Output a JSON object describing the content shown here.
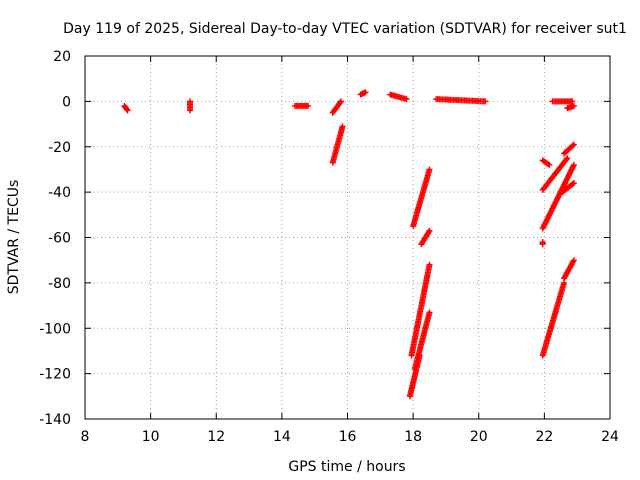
{
  "chart_data": {
    "type": "scatter",
    "title": "Day 119 of 2025, Sidereal Day-to-day VTEC variation (SDTVAR) for receiver sut1",
    "xlabel": "GPS time / hours",
    "ylabel": "SDTVAR / TECUs",
    "xlim": [
      8,
      24
    ],
    "ylim": [
      -140,
      20
    ],
    "xticks": [
      8,
      10,
      12,
      14,
      16,
      18,
      20,
      22,
      24
    ],
    "yticks": [
      20,
      0,
      -20,
      -40,
      -60,
      -80,
      -100,
      -120,
      -140
    ],
    "grid": true,
    "marker": "+",
    "marker_color": "#ff0000",
    "series": [
      {
        "name": "tracks",
        "segments": [
          {
            "x": [
              9.2,
              9.3
            ],
            "y": [
              -2,
              -4
            ]
          },
          {
            "x": [
              11.2,
              11.2
            ],
            "y": [
              0,
              -4
            ]
          },
          {
            "x": [
              14.4,
              14.8
            ],
            "y": [
              -2,
              -2
            ]
          },
          {
            "x": [
              15.55,
              15.8
            ],
            "y": [
              -5,
              0
            ]
          },
          {
            "x": [
              15.55,
              15.85
            ],
            "y": [
              -27,
              -11
            ]
          },
          {
            "x": [
              16.4,
              16.55
            ],
            "y": [
              3,
              4
            ]
          },
          {
            "x": [
              17.3,
              17.8
            ],
            "y": [
              3,
              1
            ]
          },
          {
            "x": [
              18.0,
              18.5
            ],
            "y": [
              -55,
              -30
            ]
          },
          {
            "x": [
              18.25,
              18.5
            ],
            "y": [
              -63,
              -57
            ]
          },
          {
            "x": [
              17.95,
              18.5
            ],
            "y": [
              -112,
              -72
            ]
          },
          {
            "x": [
              17.9,
              18.2
            ],
            "y": [
              -130,
              -112
            ]
          },
          {
            "x": [
              18.05,
              18.5
            ],
            "y": [
              -118,
              -93
            ]
          },
          {
            "x": [
              18.7,
              20.2
            ],
            "y": [
              1,
              0
            ]
          },
          {
            "x": [
              21.95,
              22.15
            ],
            "y": [
              -26,
              -28
            ]
          },
          {
            "x": [
              22.25,
              22.85
            ],
            "y": [
              0,
              0
            ]
          },
          {
            "x": [
              22.7,
              22.9
            ],
            "y": [
              -3,
              -2
            ]
          },
          {
            "x": [
              21.95,
              22.7
            ],
            "y": [
              -39,
              -25
            ]
          },
          {
            "x": [
              22.6,
              22.9
            ],
            "y": [
              -23,
              -19
            ]
          },
          {
            "x": [
              21.95,
              22.9
            ],
            "y": [
              -56,
              -28
            ]
          },
          {
            "x": [
              21.95,
              21.95
            ],
            "y": [
              -62,
              -63
            ]
          },
          {
            "x": [
              22.55,
              22.9
            ],
            "y": [
              -40,
              -36
            ]
          },
          {
            "x": [
              21.95,
              22.6
            ],
            "y": [
              -112,
              -80
            ]
          },
          {
            "x": [
              22.6,
              22.9
            ],
            "y": [
              -78,
              -70
            ]
          }
        ]
      }
    ]
  }
}
